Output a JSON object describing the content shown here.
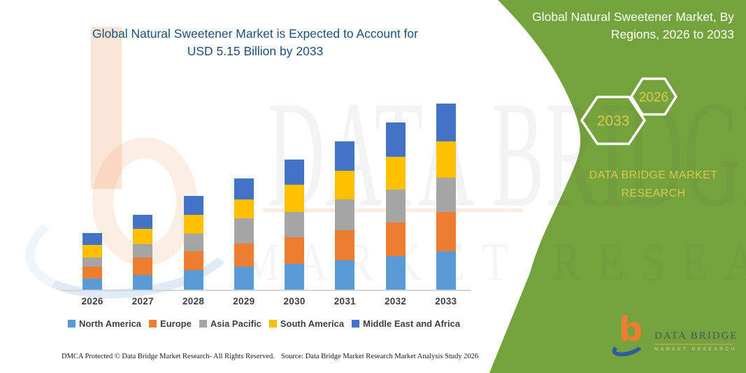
{
  "header": {
    "title_line1": "Global Natural Sweetener Market is Expected to Account for",
    "title_line2": "USD 5.15 Billion by 2033"
  },
  "panel": {
    "title_line1": "Global Natural Sweetener Market, By",
    "title_line2": "Regions, 2026 to 2033",
    "hex_large_label": "2033",
    "hex_small_label": "2026",
    "brand_line1": "DATA BRIDGE MARKET",
    "brand_line2": "RESEARCH",
    "green_color": "#74a33e",
    "gold_color": "#ddc74e"
  },
  "watermark": {
    "big_text": "DATA BRIDGE",
    "sub_text": "MARKET RESEARCH",
    "logo_letter": "b"
  },
  "logo": {
    "mark_letter": "b",
    "name": "DATA BRIDGE",
    "subtitle": "MARKET RESEARCH"
  },
  "footer": {
    "dmca": "DMCA Protected © Data Bridge Market Research-  All Rights Reserved.",
    "source": "Source: Data Bridge Market Research  Market Analysis Study 2026"
  },
  "chart_data": {
    "type": "bar",
    "stacked": true,
    "title": "Global Natural Sweetener Market, By Regions, 2026 to 2033",
    "unit": "USD Billion",
    "categories": [
      "2026",
      "2027",
      "2028",
      "2029",
      "2030",
      "2031",
      "2032",
      "2033"
    ],
    "series": [
      {
        "name": "North America",
        "color": "#5B9BD5",
        "values": [
          0.32,
          0.4,
          0.54,
          0.64,
          0.72,
          0.81,
          0.93,
          1.07
        ]
      },
      {
        "name": "Europe",
        "color": "#ED7D31",
        "values": [
          0.32,
          0.5,
          0.52,
          0.65,
          0.74,
          0.83,
          0.94,
          1.09
        ]
      },
      {
        "name": "Asia Pacific",
        "color": "#A5A5A5",
        "values": [
          0.26,
          0.37,
          0.49,
          0.69,
          0.7,
          0.87,
          0.91,
          0.94
        ]
      },
      {
        "name": "South America",
        "color": "#FFC000",
        "values": [
          0.34,
          0.41,
          0.52,
          0.52,
          0.74,
          0.78,
          0.91,
          1.01
        ]
      },
      {
        "name": "Middle East and Africa",
        "color": "#4472C4",
        "values": [
          0.34,
          0.4,
          0.52,
          0.58,
          0.71,
          0.82,
          0.95,
          1.04
        ]
      }
    ],
    "totals": [
      1.58,
      2.08,
      2.59,
      3.08,
      3.61,
      4.11,
      4.64,
      5.15
    ],
    "ylim": [
      0,
      5.35
    ],
    "xlabel": "",
    "ylabel": "",
    "grid": false,
    "legend_position": "bottom",
    "highlight_years": [
      "2033",
      "2026"
    ]
  }
}
